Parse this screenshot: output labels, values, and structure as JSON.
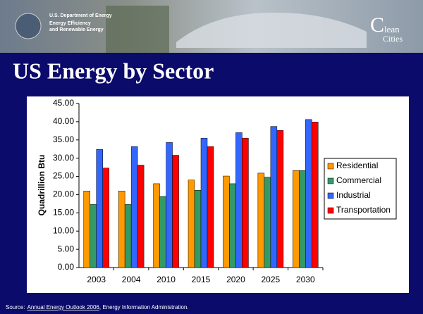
{
  "header": {
    "agency": "U.S. Department of Energy",
    "office_line1": "Energy Efficiency",
    "office_line2": "and Renewable Energy",
    "logo_c": "C",
    "logo_lean": "lean",
    "logo_cities": "Cities"
  },
  "chart_data": {
    "type": "bar",
    "title": "US Energy by Sector",
    "y_label": "Quadrillion Btu",
    "categories": [
      "2003",
      "2004",
      "2010",
      "2015",
      "2020",
      "2025",
      "2030"
    ],
    "series": [
      {
        "name": "Residential",
        "color": "#ff9900",
        "values": [
          21.0,
          21.0,
          23.0,
          24.0,
          25.1,
          25.9,
          26.6
        ]
      },
      {
        "name": "Commercial",
        "color": "#339966",
        "values": [
          17.3,
          17.3,
          19.5,
          21.2,
          23.0,
          24.8,
          26.6
        ]
      },
      {
        "name": "Industrial",
        "color": "#3366ff",
        "values": [
          32.4,
          33.2,
          34.3,
          35.5,
          37.0,
          38.7,
          40.6
        ]
      },
      {
        "name": "Transportation",
        "color": "#ff0000",
        "values": [
          27.3,
          28.1,
          30.8,
          33.2,
          35.5,
          37.6,
          39.9
        ]
      }
    ],
    "ylim": [
      0,
      45
    ],
    "yticks": [
      {
        "value": 0,
        "label": "0.00"
      },
      {
        "value": 5,
        "label": "5.00"
      },
      {
        "value": 10,
        "label": "10.00"
      },
      {
        "value": 15,
        "label": "15.00"
      },
      {
        "value": 20,
        "label": "20.00"
      },
      {
        "value": 25,
        "label": "25.00"
      },
      {
        "value": 30,
        "label": "30.00"
      },
      {
        "value": 35,
        "label": "35.00"
      },
      {
        "value": 40,
        "label": "40.00"
      },
      {
        "value": 45,
        "label": "45.00"
      }
    ],
    "grid": false,
    "legend": "right"
  },
  "source": {
    "prefix": "Source:",
    "link": "Annual Energy Outlook 2006",
    "rest": ", Energy Information Administration."
  }
}
